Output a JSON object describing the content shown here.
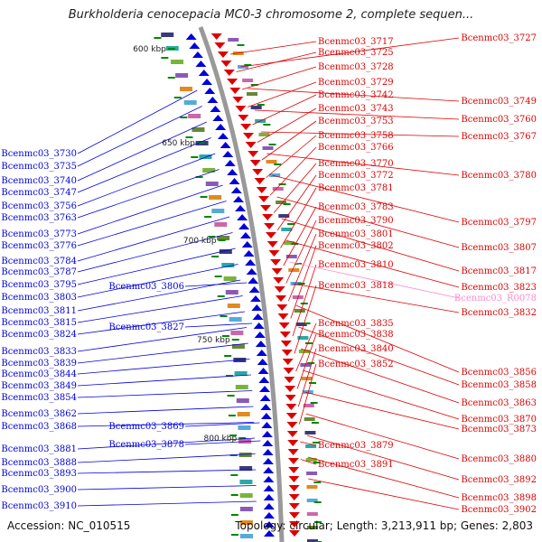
{
  "title": "Burkholderia cenocepacia MC0-3 chromosome 2, complete sequen...",
  "accession": "Accession: NC_010515",
  "summary": "Topology: circular; Length: 3,213,911 bp; Genes: 2,803",
  "colors": {
    "plus_strand": "#0000dd",
    "minus_strand": "#dd0000",
    "rna": "#ff88cc",
    "backbone": "#999999",
    "tick": "#008800"
  },
  "scale_labels": [
    {
      "label": "600 kbp",
      "pos": 0
    },
    {
      "label": "650 kbp",
      "pos": 1
    },
    {
      "label": "700 kbp",
      "pos": 2
    },
    {
      "label": "750 kbp",
      "pos": 3
    },
    {
      "label": "800 kbp",
      "pos": 4
    }
  ],
  "left_genes": [
    "Bcenmc03_3730",
    "Bcenmc03_3735",
    "Bcenmc03_3740",
    "Bcenmc03_3747",
    "Bcenmc03_3756",
    "Bcenmc03_3763",
    "Bcenmc03_3773",
    "Bcenmc03_3776",
    "Bcenmc03_3784",
    "Bcenmc03_3787",
    "Bcenmc03_3795",
    "Bcenmc03_3803",
    "Bcenmc03_3811",
    "Bcenmc03_3815",
    "Bcenmc03_3824",
    "Bcenmc03_3833",
    "Bcenmc03_3839",
    "Bcenmc03_3844",
    "Bcenmc03_3849",
    "Bcenmc03_3854",
    "Bcenmc03_3862",
    "Bcenmc03_3868",
    "Bcenmc03_3881",
    "Bcenmc03_3888",
    "Bcenmc03_3893",
    "Bcenmc03_3900",
    "Bcenmc03_3910"
  ],
  "left_inner_genes": [
    "Bcenmc03_3806",
    "Bcenmc03_3827",
    "Bcenmc03_3869",
    "Bcenmc03_3878"
  ],
  "right_col1": [
    "Bcenmc03_3717",
    "Bcenmc03_3725",
    "Bcenmc03_3728",
    "Bcenmc03_3729",
    "Bcenmc03_3742",
    "Bcenmc03_3743",
    "Bcenmc03_3753",
    "Bcenmc03_3758",
    "Bcenmc03_3766",
    "Bcenmc03_3770",
    "Bcenmc03_3772",
    "Bcenmc03_3781",
    "Bcenmc03_3783",
    "Bcenmc03_3790",
    "Bcenmc03_3801",
    "Bcenmc03_3802",
    "Bcenmc03_3810",
    "Bcenmc03_3818",
    "Bcenmc03_3835",
    "Bcenmc03_3838",
    "Bcenmc03_3840",
    "Bcenmc03_3852",
    "Bcenmc03_3879",
    "Bcenmc03_3891"
  ],
  "right_col2": [
    "Bcenmc03_3727",
    "Bcenmc03_3749",
    "Bcenmc03_3760",
    "Bcenmc03_3767",
    "Bcenmc03_3780",
    "Bcenmc03_3797",
    "Bcenmc03_3807",
    "Bcenmc03_3817",
    "Bcenmc03_3823",
    "Bcenmc03_R0078",
    "Bcenmc03_3832",
    "Bcenmc03_3856",
    "Bcenmc03_3858",
    "Bcenmc03_3863",
    "Bcenmc03_3870",
    "Bcenmc03_3873",
    "Bcenmc03_3880",
    "Bcenmc03_3892",
    "Bcenmc03_3898",
    "Bcenmc03_3902"
  ],
  "rna_gene": "Bcenmc03_R0078"
}
